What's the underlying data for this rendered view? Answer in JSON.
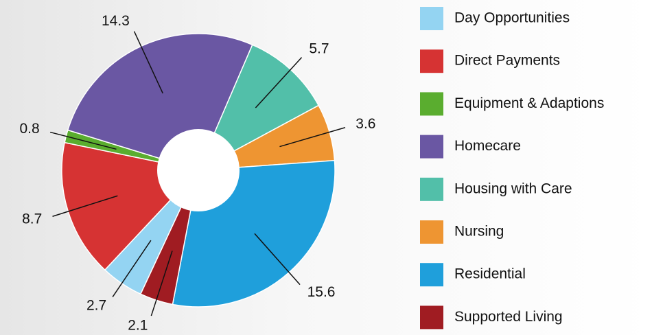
{
  "chart_data": {
    "type": "pie",
    "categories": [
      "Day Opportunities",
      "Direct Payments",
      "Equipment & Adaptions",
      "Homecare",
      "Housing with Care",
      "Nursing",
      "Residential",
      "Supported Living"
    ],
    "values": [
      2.7,
      8.7,
      0.8,
      14.3,
      5.7,
      3.6,
      15.6,
      2.1
    ],
    "colors": [
      "#94d4f2",
      "#d63333",
      "#5aad2f",
      "#6a57a3",
      "#52bfa9",
      "#ee9532",
      "#1f9fdb",
      "#a01c22"
    ],
    "legend": "right"
  }
}
